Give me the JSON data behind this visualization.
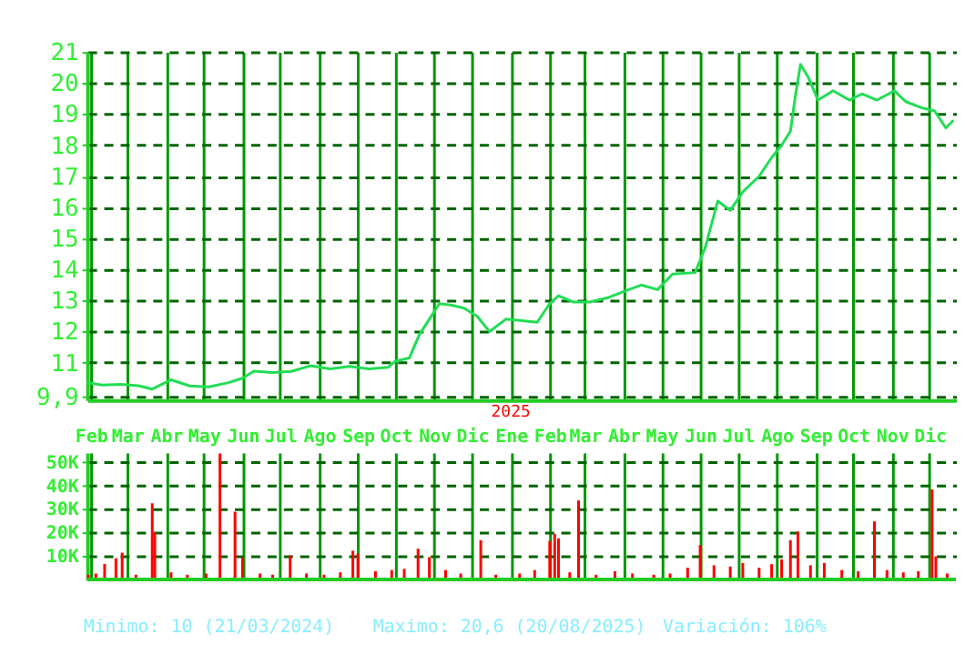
{
  "chart_data": [
    {
      "type": "line",
      "x": [
        "2024-01-29",
        "2024-02-10",
        "2024-02-25",
        "2024-03-10",
        "2024-03-21",
        "2024-04-05",
        "2024-04-20",
        "2024-05-05",
        "2024-05-20",
        "2024-06-01",
        "2024-06-10",
        "2024-06-25",
        "2024-07-10",
        "2024-07-25",
        "2024-08-10",
        "2024-08-25",
        "2024-09-10",
        "2024-09-25",
        "2024-10-01",
        "2024-10-12",
        "2024-10-20",
        "2024-10-28",
        "2024-11-05",
        "2024-11-15",
        "2024-11-25",
        "2024-12-05",
        "2024-12-15",
        "2024-12-28",
        "2025-01-10",
        "2025-01-22",
        "2025-02-01",
        "2025-02-08",
        "2025-02-20",
        "2025-03-05",
        "2025-03-20",
        "2025-04-05",
        "2025-04-15",
        "2025-04-28",
        "2025-05-10",
        "2025-05-28",
        "2025-06-05",
        "2025-06-15",
        "2025-06-25",
        "2025-07-05",
        "2025-07-18",
        "2025-07-28",
        "2025-08-05",
        "2025-08-12",
        "2025-08-16",
        "2025-08-20",
        "2025-08-26",
        "2025-09-03",
        "2025-09-15",
        "2025-09-28",
        "2025-10-08",
        "2025-10-20",
        "2025-11-03",
        "2025-11-12",
        "2025-11-25",
        "2025-12-05",
        "2025-12-14",
        "2025-12-20"
      ],
      "series": [
        {
          "color": "#22dd55",
          "values": [
            10.36,
            10.28,
            10.3,
            10.26,
            10.15,
            10.45,
            10.25,
            10.22,
            10.35,
            10.5,
            10.73,
            10.68,
            10.72,
            10.9,
            10.8,
            10.88,
            10.8,
            10.85,
            11.05,
            11.15,
            11.9,
            12.4,
            12.9,
            12.85,
            12.75,
            12.5,
            12.0,
            12.4,
            12.35,
            12.3,
            12.9,
            13.15,
            12.95,
            12.95,
            13.1,
            13.35,
            13.5,
            13.35,
            13.85,
            13.9,
            14.7,
            16.2,
            15.9,
            16.5,
            17.0,
            17.6,
            18.0,
            18.45,
            19.6,
            20.6,
            20.2,
            19.45,
            19.75,
            19.45,
            19.65,
            19.45,
            19.75,
            19.4,
            19.2,
            19.1,
            18.55,
            18.8
          ]
        }
      ],
      "xlim": [
        "2024-01-29",
        "2025-12-22"
      ],
      "xticks": [
        {
          "value": "2024-02-01",
          "label": null
        },
        {
          "value": "2024-03-01",
          "label": null
        },
        {
          "value": "2024-04-01",
          "label": null
        },
        {
          "value": "2024-05-01",
          "label": null
        },
        {
          "value": "2024-06-01",
          "label": null
        },
        {
          "value": "2024-07-01",
          "label": null
        },
        {
          "value": "2024-08-01",
          "label": null
        },
        {
          "value": "2024-09-01",
          "label": null
        },
        {
          "value": "2024-10-01",
          "label": null
        },
        {
          "value": "2024-11-01",
          "label": null
        },
        {
          "value": "2024-12-01",
          "label": null
        },
        {
          "value": "2025-01-01",
          "label": null
        },
        {
          "value": "2025-02-01",
          "label": null
        },
        {
          "value": "2025-03-01",
          "label": null
        },
        {
          "value": "2025-04-01",
          "label": null
        },
        {
          "value": "2025-05-01",
          "label": null
        },
        {
          "value": "2025-06-01",
          "label": null
        },
        {
          "value": "2025-07-01",
          "label": null
        },
        {
          "value": "2025-08-01",
          "label": null
        },
        {
          "value": "2025-09-01",
          "label": null
        },
        {
          "value": "2025-10-01",
          "label": null
        },
        {
          "value": "2025-11-01",
          "label": null
        },
        {
          "value": "2025-12-01",
          "label": null
        }
      ],
      "ylim": [
        9.8,
        21
      ],
      "yticks": [
        {
          "value": 9.9,
          "label": "9,9"
        },
        11,
        12,
        13,
        14,
        15,
        16,
        17,
        18,
        19,
        20,
        21
      ],
      "grid": true,
      "line_style": "solid",
      "marker": "none",
      "tick_labels": "y",
      "annotations": [
        "2025"
      ]
    },
    {
      "type": "bar",
      "x": [
        "2024-01-30",
        "2024-02-05",
        "2024-02-12",
        "2024-02-21",
        "2024-02-26",
        "2024-03-08",
        "2024-03-21",
        "2024-03-23",
        "2024-04-05",
        "2024-04-18",
        "2024-05-03",
        "2024-05-14",
        "2024-05-26",
        "2024-06-01",
        "2024-06-15",
        "2024-06-25",
        "2024-07-09",
        "2024-07-22",
        "2024-08-05",
        "2024-08-18",
        "2024-08-28",
        "2024-09-01",
        "2024-09-15",
        "2024-09-28",
        "2024-10-08",
        "2024-10-19",
        "2024-10-28",
        "2024-11-10",
        "2024-11-22",
        "2024-12-08",
        "2024-12-20",
        "2025-01-08",
        "2025-01-20",
        "2025-02-01",
        "2025-02-05",
        "2025-02-08",
        "2025-02-17",
        "2025-02-24",
        "2025-03-10",
        "2025-03-25",
        "2025-04-08",
        "2025-04-25",
        "2025-05-08",
        "2025-05-22",
        "2025-06-01",
        "2025-06-12",
        "2025-06-25",
        "2025-07-05",
        "2025-07-18",
        "2025-07-28",
        "2025-08-05",
        "2025-08-12",
        "2025-08-18",
        "2025-08-28",
        "2025-09-08",
        "2025-09-22",
        "2025-10-05",
        "2025-10-18",
        "2025-10-28",
        "2025-11-10",
        "2025-11-22",
        "2025-12-03",
        "2025-12-06",
        "2025-12-15"
      ],
      "series": [
        {
          "color": "#ff0000",
          "values": [
            2000,
            2500,
            6600,
            9000,
            11400,
            2000,
            32400,
            19900,
            3000,
            2000,
            2500,
            53600,
            28800,
            9500,
            2500,
            2000,
            10200,
            2500,
            2000,
            3000,
            12200,
            11000,
            3500,
            4000,
            4500,
            13100,
            9500,
            4000,
            2500,
            16700,
            2000,
            2500,
            4000,
            16300,
            19400,
            17500,
            3000,
            33600,
            2000,
            3500,
            2500,
            2000,
            2500,
            5000,
            14600,
            6000,
            5500,
            7000,
            5000,
            6500,
            8500,
            16700,
            20400,
            6000,
            7000,
            4000,
            3500,
            24700,
            4000,
            3000,
            3500,
            38300,
            9800,
            2500
          ]
        }
      ],
      "xlim": [
        "2024-01-29",
        "2025-12-22"
      ],
      "xticks": [
        {
          "value": "2024-02-01",
          "label": "Feb"
        },
        {
          "value": "2024-03-01",
          "label": "Mar"
        },
        {
          "value": "2024-04-01",
          "label": "Abr"
        },
        {
          "value": "2024-05-01",
          "label": "May"
        },
        {
          "value": "2024-06-01",
          "label": "Jun"
        },
        {
          "value": "2024-07-01",
          "label": "Jul"
        },
        {
          "value": "2024-08-01",
          "label": "Ago"
        },
        {
          "value": "2024-09-01",
          "label": "Sep"
        },
        {
          "value": "2024-10-01",
          "label": "Oct"
        },
        {
          "value": "2024-11-01",
          "label": "Nov"
        },
        {
          "value": "2024-12-01",
          "label": "Dic"
        },
        {
          "value": "2025-01-01",
          "label": "Ene"
        },
        {
          "value": "2025-02-01",
          "label": "Feb"
        },
        {
          "value": "2025-03-01",
          "label": "Mar"
        },
        {
          "value": "2025-04-01",
          "label": "Abr"
        },
        {
          "value": "2025-05-01",
          "label": "May"
        },
        {
          "value": "2025-06-01",
          "label": "Jun"
        },
        {
          "value": "2025-07-01",
          "label": "Jul"
        },
        {
          "value": "2025-08-01",
          "label": "Ago"
        },
        {
          "value": "2025-09-01",
          "label": "Sep"
        },
        {
          "value": "2025-10-01",
          "label": "Oct"
        },
        {
          "value": "2025-11-01",
          "label": "Nov"
        },
        {
          "value": "2025-12-01",
          "label": "Dic"
        }
      ],
      "ylim": [
        0,
        54000
      ],
      "yticks": [
        {
          "value": 10000,
          "label": "10K"
        },
        {
          "value": 20000,
          "label": "20K"
        },
        {
          "value": 30000,
          "label": "30K"
        },
        {
          "value": 40000,
          "label": "40K"
        },
        {
          "value": 50000,
          "label": "50K"
        }
      ],
      "grid": true,
      "annotations": [
        "Minimo: 10 (21/03/2024)",
        "Maximo: 20,6 (20/08/2025)",
        "Variación: 106%"
      ]
    }
  ]
}
